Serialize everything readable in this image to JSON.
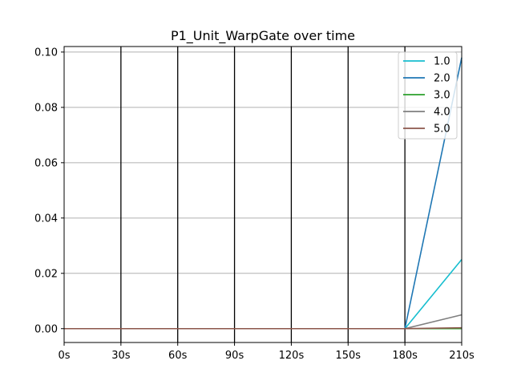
{
  "chart_data": {
    "type": "line",
    "title": "P1_Unit_WarpGate over time",
    "xlabel": "",
    "ylabel": "",
    "x": [
      0,
      30,
      60,
      90,
      120,
      150,
      180,
      210
    ],
    "x_tick_labels": [
      "0s",
      "30s",
      "60s",
      "90s",
      "120s",
      "150s",
      "180s",
      "210s"
    ],
    "xlim": [
      0,
      210
    ],
    "ylim": [
      -0.005,
      0.102
    ],
    "y_ticks": [
      0.0,
      0.02,
      0.04,
      0.06,
      0.08,
      0.1
    ],
    "y_tick_labels": [
      "0.00",
      "0.02",
      "0.04",
      "0.06",
      "0.08",
      "0.10"
    ],
    "grid": "horizontal gridlines on y ticks; black vertical lines at every x tick",
    "legend_position": "top-right",
    "series": [
      {
        "name": "1.0",
        "color": "#17becf",
        "values": [
          0,
          0,
          0,
          0,
          0,
          0,
          0,
          0.025
        ]
      },
      {
        "name": "2.0",
        "color": "#1f77b4",
        "values": [
          0,
          0,
          0,
          0,
          0,
          0,
          0,
          0.098
        ]
      },
      {
        "name": "3.0",
        "color": "#2ca02c",
        "values": [
          0,
          0,
          0,
          0,
          0,
          0,
          0,
          0.0
        ]
      },
      {
        "name": "4.0",
        "color": "#7f7f7f",
        "values": [
          0,
          0,
          0,
          0,
          0,
          0,
          0,
          0.005
        ]
      },
      {
        "name": "5.0",
        "color": "#8c564b",
        "values": [
          0,
          0,
          0,
          0,
          0,
          0,
          0,
          0.0003
        ]
      }
    ]
  }
}
